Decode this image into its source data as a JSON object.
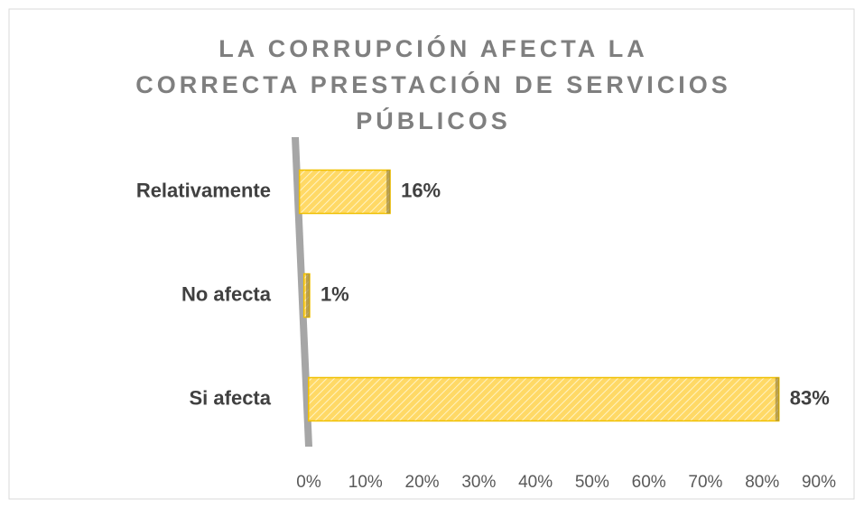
{
  "chart_data": {
    "type": "bar",
    "orientation": "horizontal",
    "title": "LA CORRUPCIÓN AFECTA LA CORRECTA PRESTACIÓN DE SERVICIOS PÚBLICOS",
    "categories": [
      "Relativamente",
      "No afecta",
      "Si afecta"
    ],
    "values": [
      16,
      1,
      83
    ],
    "value_labels": [
      "16%",
      "1%",
      "83%"
    ],
    "color": "#ffd966",
    "xlim": [
      0,
      90
    ],
    "xticks": [
      {
        "value": 0,
        "label": "0%"
      },
      {
        "value": 10,
        "label": "10%"
      },
      {
        "value": 20,
        "label": "20%"
      },
      {
        "value": 30,
        "label": "30%"
      },
      {
        "value": 40,
        "label": "40%"
      },
      {
        "value": 50,
        "label": "50%"
      },
      {
        "value": 60,
        "label": "60%"
      },
      {
        "value": 70,
        "label": "70%"
      },
      {
        "value": 80,
        "label": "80%"
      },
      {
        "value": 90,
        "label": "90%"
      }
    ]
  }
}
